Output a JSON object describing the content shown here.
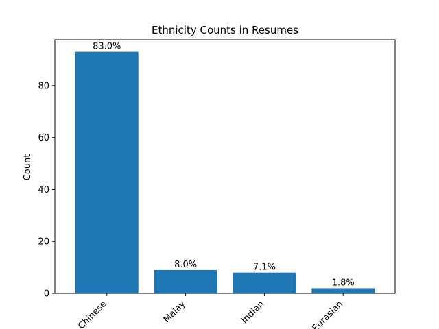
{
  "chart_data": {
    "type": "bar",
    "title": "Ethnicity Counts in Resumes",
    "xlabel": "",
    "ylabel": "Count",
    "categories": [
      "Chinese",
      "Malay",
      "Indian",
      "Eurasian"
    ],
    "values": [
      93,
      9,
      8,
      2
    ],
    "data_labels": [
      "83.0%",
      "8.0%",
      "7.1%",
      "1.8%"
    ],
    "yticks": [
      0,
      20,
      40,
      60,
      80
    ],
    "ytick_labels": [
      "0",
      "20",
      "40",
      "60",
      "80"
    ],
    "ylim": [
      0,
      97.65
    ],
    "grid": false,
    "legend": "none",
    "colors": {
      "bar": "#1f77b4",
      "axis": "#000000",
      "text": "#000000"
    }
  }
}
